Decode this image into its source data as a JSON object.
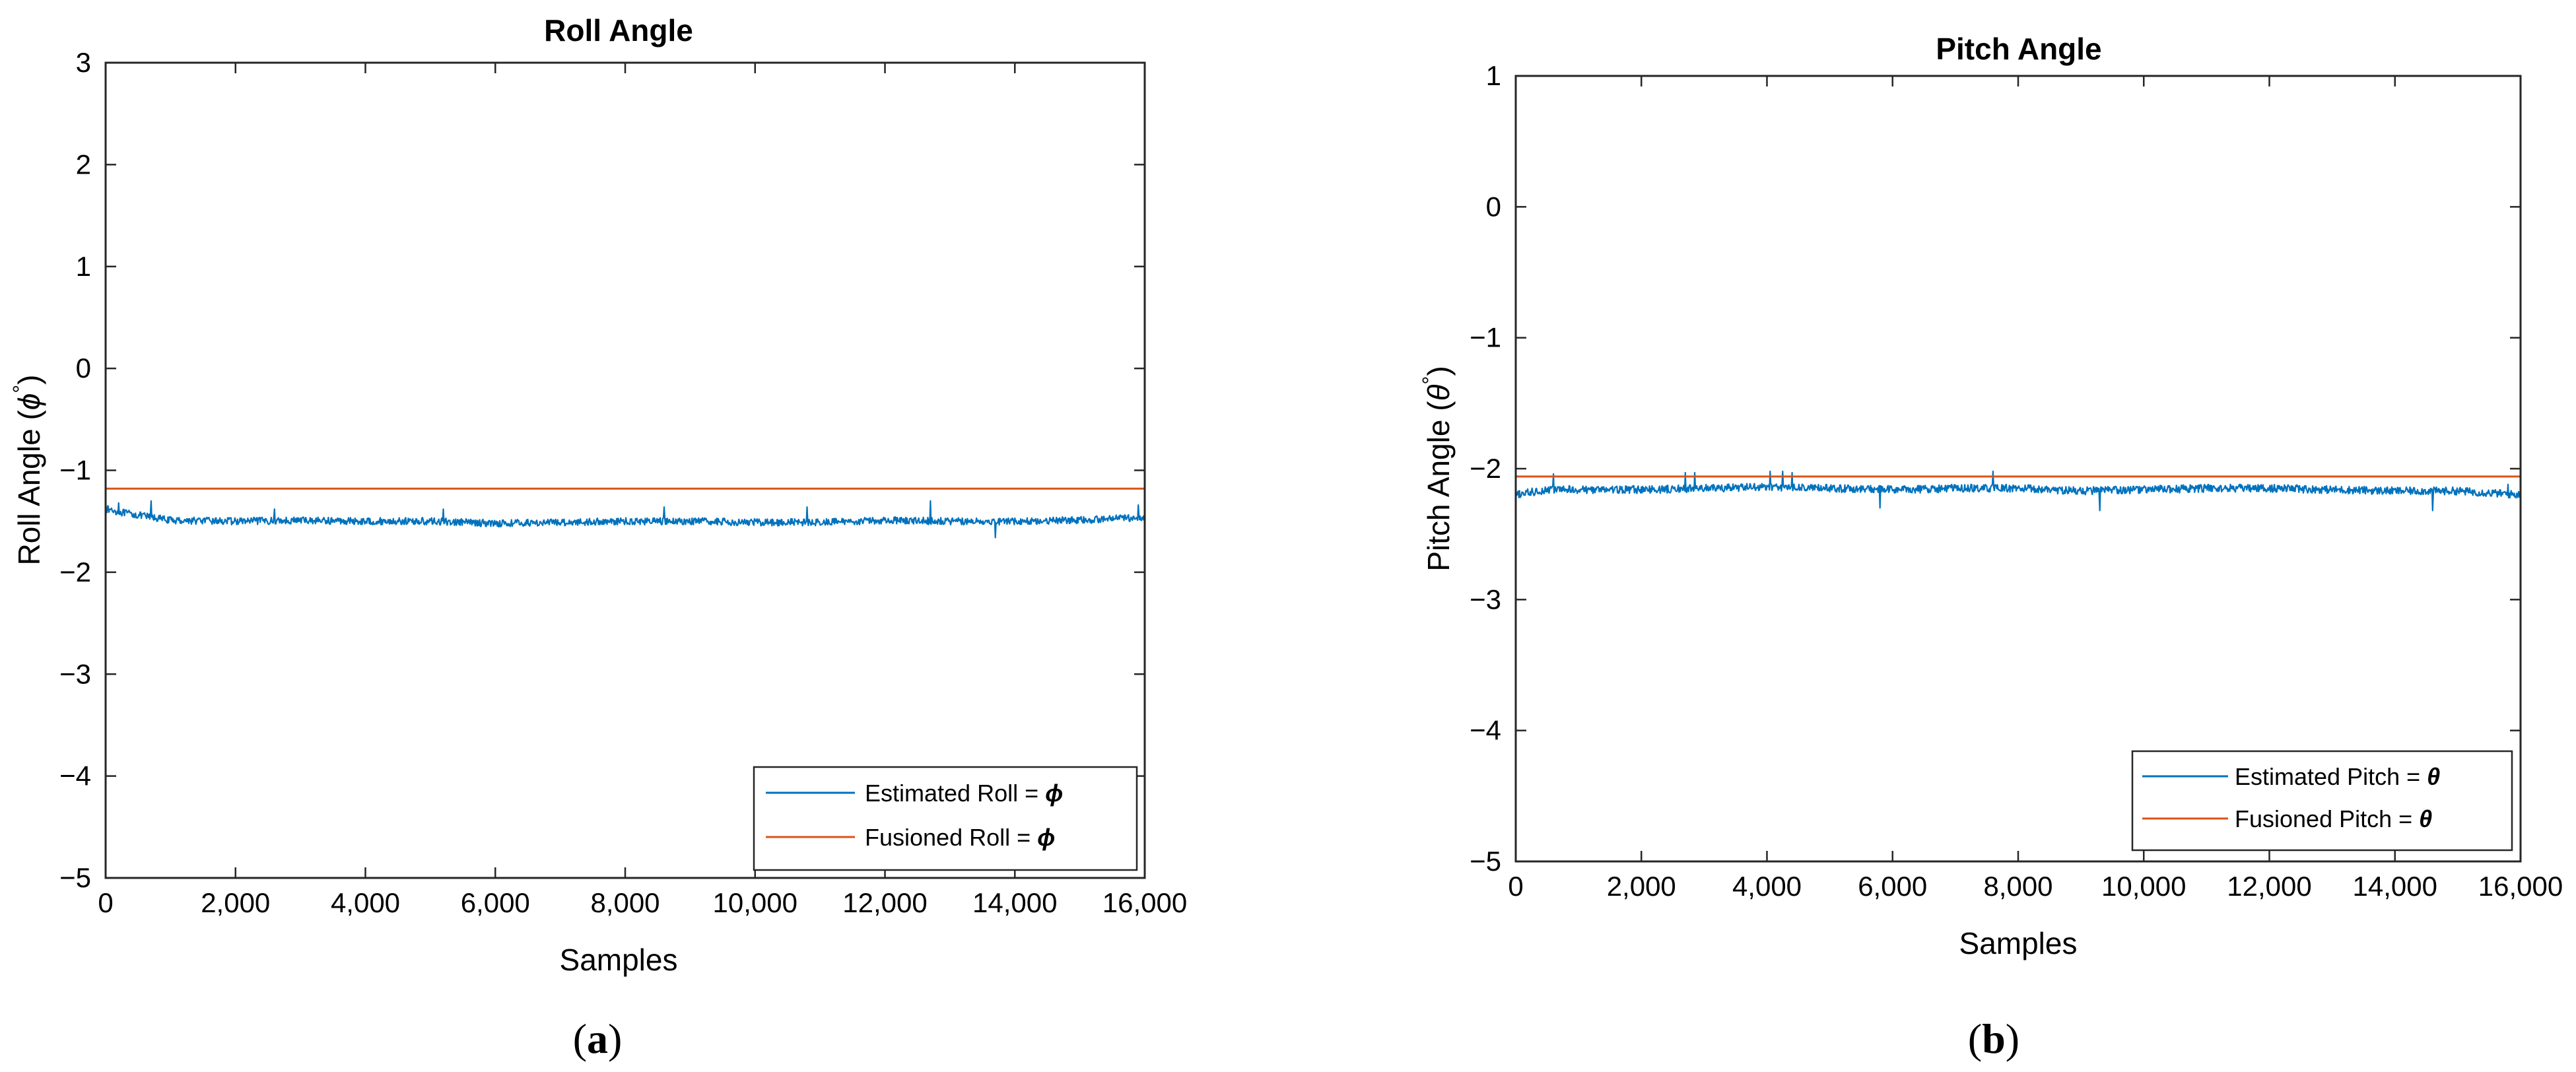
{
  "figure": {
    "captions": [
      "(a)",
      "(b)"
    ],
    "caption_letters": [
      "a",
      "b"
    ]
  },
  "chart_data": [
    {
      "type": "line",
      "title": "Roll Angle",
      "xlabel": "Samples",
      "ylabel_prefix": "Roll Angle (",
      "ylabel_symbol": "ϕ",
      "ylabel_degree": "°",
      "ylabel_suffix": ")",
      "xlim": [
        0,
        16000
      ],
      "ylim": [
        -5,
        3
      ],
      "xticks": [
        0,
        2000,
        4000,
        6000,
        8000,
        10000,
        12000,
        14000,
        16000
      ],
      "xtick_labels": [
        "0",
        "2,000",
        "4,000",
        "6,000",
        "8,000",
        "10,000",
        "12,000",
        "14,000",
        "16,000"
      ],
      "yticks": [
        -5,
        -4,
        -3,
        -2,
        -1,
        0,
        1,
        2,
        3
      ],
      "ytick_labels": [
        "−5",
        "−4",
        "−3",
        "−2",
        "−1",
        "0",
        "1",
        "2",
        "3"
      ],
      "legend_position": "bottom-right",
      "series": [
        {
          "name": "Estimated Roll = ϕ",
          "label_prefix": "Estimated Roll = ",
          "label_symbol": "ϕ",
          "color": "#0072BD",
          "style": "noisy",
          "x": [
            0,
            300,
            700,
            1000,
            2000,
            3000,
            4000,
            5000,
            6000,
            7000,
            8000,
            9000,
            10000,
            11000,
            12000,
            13000,
            14000,
            15000,
            16000
          ],
          "y": [
            -1.38,
            -1.42,
            -1.46,
            -1.49,
            -1.5,
            -1.49,
            -1.5,
            -1.5,
            -1.52,
            -1.51,
            -1.5,
            -1.5,
            -1.51,
            -1.51,
            -1.49,
            -1.5,
            -1.5,
            -1.49,
            -1.46
          ],
          "noise": 0.035,
          "spikes": [
            [
              200,
              -1.32
            ],
            [
              700,
              -1.3
            ],
            [
              2600,
              -1.38
            ],
            [
              5200,
              -1.38
            ],
            [
              8600,
              -1.36
            ],
            [
              10800,
              -1.36
            ],
            [
              12700,
              -1.3
            ],
            [
              13700,
              -1.66
            ],
            [
              15900,
              -1.34
            ]
          ]
        },
        {
          "name": "Fusioned Roll = ϕ",
          "label_prefix": "Fusioned Roll = ",
          "label_symbol": "ϕ",
          "color": "#D95319",
          "style": "constant",
          "x": [
            0,
            16000
          ],
          "y": [
            -1.18,
            -1.18
          ]
        }
      ]
    },
    {
      "type": "line",
      "title": "Pitch Angle",
      "xlabel": "Samples",
      "ylabel_prefix": "Pitch Angle (",
      "ylabel_symbol": "θ",
      "ylabel_degree": "°",
      "ylabel_suffix": ")",
      "xlim": [
        0,
        16000
      ],
      "ylim": [
        -5,
        1
      ],
      "xticks": [
        0,
        2000,
        4000,
        6000,
        8000,
        10000,
        12000,
        14000,
        16000
      ],
      "xtick_labels": [
        "0",
        "2,000",
        "4,000",
        "6,000",
        "8,000",
        "10,000",
        "12,000",
        "14,000",
        "16,000"
      ],
      "yticks": [
        -5,
        -4,
        -3,
        -2,
        -1,
        0,
        1
      ],
      "ytick_labels": [
        "−5",
        "−4",
        "−3",
        "−2",
        "−1",
        "0",
        "1"
      ],
      "legend_position": "bottom-right",
      "series": [
        {
          "name": "Estimated Pitch = θ",
          "label_prefix": "Estimated Pitch = ",
          "label_symbol": "θ",
          "color": "#0072BD",
          "style": "noisy",
          "x": [
            0,
            500,
            1000,
            2000,
            3000,
            4000,
            5000,
            6000,
            7000,
            8000,
            9000,
            10000,
            11000,
            12000,
            13000,
            14000,
            15000,
            16000
          ],
          "y": [
            -2.2,
            -2.16,
            -2.16,
            -2.16,
            -2.15,
            -2.14,
            -2.15,
            -2.16,
            -2.15,
            -2.15,
            -2.17,
            -2.16,
            -2.15,
            -2.15,
            -2.16,
            -2.17,
            -2.17,
            -2.2
          ],
          "noise": 0.03,
          "spikes": [
            [
              600,
              -2.04
            ],
            [
              2700,
              -2.03
            ],
            [
              2850,
              -2.03
            ],
            [
              4050,
              -2.02
            ],
            [
              4250,
              -2.02
            ],
            [
              4400,
              -2.03
            ],
            [
              7600,
              -2.02
            ],
            [
              5800,
              -2.3
            ],
            [
              9300,
              -2.32
            ],
            [
              14600,
              -2.32
            ],
            [
              15800,
              -2.12
            ]
          ]
        },
        {
          "name": "Fusioned Pitch = θ",
          "label_prefix": "Fusioned Pitch = ",
          "label_symbol": "θ",
          "color": "#D95319",
          "style": "constant",
          "x": [
            0,
            16000
          ],
          "y": [
            -2.06,
            -2.06
          ]
        }
      ]
    }
  ]
}
